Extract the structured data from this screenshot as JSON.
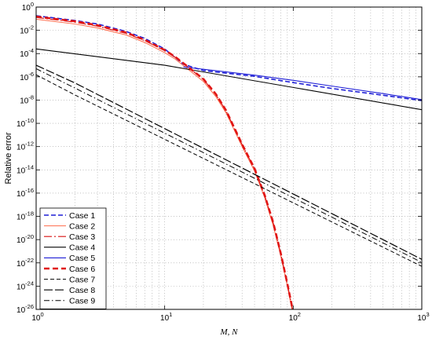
{
  "chart_data": {
    "type": "line",
    "xscale": "log",
    "yscale": "log",
    "xlim": [
      1,
      1000
    ],
    "ylim": [
      1e-26,
      1
    ],
    "xlabel": "M, N",
    "ylabel": "Relative error",
    "grid": true,
    "legend_position": "bottom-left",
    "x_ticks": [
      1,
      10,
      100,
      1000
    ],
    "x_tick_labels": [
      {
        "base": "10",
        "exp": "0"
      },
      {
        "base": "10",
        "exp": "1"
      },
      {
        "base": "10",
        "exp": "2"
      },
      {
        "base": "10",
        "exp": "3"
      }
    ],
    "y_ticks": [
      1,
      0.01,
      0.0001,
      1e-06,
      1e-08,
      1e-10,
      1e-12,
      1e-14,
      1e-16,
      1e-18,
      1e-20,
      1e-22,
      1e-24,
      1e-26
    ],
    "y_tick_labels": [
      {
        "base": "10",
        "exp": "0"
      },
      {
        "base": "10",
        "exp": "-2"
      },
      {
        "base": "10",
        "exp": "-4"
      },
      {
        "base": "10",
        "exp": "-6"
      },
      {
        "base": "10",
        "exp": "-8"
      },
      {
        "base": "10",
        "exp": "-10"
      },
      {
        "base": "10",
        "exp": "-12"
      },
      {
        "base": "10",
        "exp": "-14"
      },
      {
        "base": "10",
        "exp": "-16"
      },
      {
        "base": "10",
        "exp": "-18"
      },
      {
        "base": "10",
        "exp": "-20"
      },
      {
        "base": "10",
        "exp": "-22"
      },
      {
        "base": "10",
        "exp": "-24"
      },
      {
        "base": "10",
        "exp": "-26"
      }
    ],
    "series": [
      {
        "name": "Case 1",
        "color": "#1f1fd6",
        "dash": "6,3",
        "width": 1.6,
        "x": [
          1,
          2,
          3,
          5,
          7,
          10,
          14,
          20,
          50,
          100,
          200,
          500,
          1000
        ],
        "y": [
          0.18,
          0.07,
          0.035,
          0.008,
          0.002,
          0.00025,
          1.2e-05,
          3.5e-06,
          1.1e-06,
          3.2e-07,
          1e-07,
          2.6e-08,
          9e-09
        ]
      },
      {
        "name": "Case 2",
        "color": "#ff6a4a",
        "dash": "",
        "width": 1.0,
        "x": [
          1,
          2,
          3,
          5,
          7,
          10,
          12,
          15,
          20,
          25,
          30,
          40,
          50,
          60,
          70,
          80,
          90,
          100
        ],
        "y": [
          0.09,
          0.035,
          0.016,
          0.004,
          0.0009,
          0.00012,
          3.5e-05,
          5e-06,
          4e-07,
          2e-08,
          8e-10,
          1e-12,
          8e-15,
          4e-17,
          1.5e-19,
          4e-22,
          1e-24,
          3e-27
        ]
      },
      {
        "name": "Case 3",
        "color": "#d81010",
        "dash": "10,3,2,3",
        "width": 1.2,
        "x": [
          1,
          2,
          3,
          5,
          7,
          10,
          12,
          15,
          20,
          25,
          30,
          40,
          50,
          60,
          70,
          80,
          90,
          100
        ],
        "y": [
          0.13,
          0.05,
          0.023,
          0.0055,
          0.0013,
          0.00018,
          5e-05,
          7.5e-06,
          6e-07,
          3e-08,
          1.2e-09,
          1.5e-12,
          1.2e-14,
          6e-17,
          2.5e-19,
          6e-22,
          1.5e-24,
          5e-27
        ]
      },
      {
        "name": "Case 4",
        "color": "#000000",
        "dash": "",
        "width": 1.1,
        "x": [
          1,
          10,
          17,
          1000
        ],
        "y": [
          0.00025,
          1e-05,
          3.6e-06,
          1.5e-09
        ]
      },
      {
        "name": "Case 5",
        "color": "#1f1fd6",
        "dash": "",
        "width": 1.1,
        "x": [
          14,
          17,
          20,
          50,
          100,
          200,
          500,
          1000
        ],
        "y": [
          7e-06,
          5.5e-06,
          4.5e-06,
          1.4e-06,
          5e-07,
          1.6e-07,
          3.6e-08,
          1.1e-08
        ]
      },
      {
        "name": "Case 6",
        "color": "#e01515",
        "dash": "7,4",
        "width": 2.6,
        "x": [
          1,
          2,
          3,
          5,
          7,
          10,
          12,
          15,
          20,
          25,
          30,
          40,
          50,
          60,
          70,
          80,
          90,
          100
        ],
        "y": [
          0.15,
          0.06,
          0.027,
          0.0065,
          0.0015,
          0.0002,
          5.5e-05,
          8e-06,
          6.5e-07,
          3.3e-08,
          1.3e-09,
          1.6e-12,
          1.3e-14,
          6.5e-17,
          2.7e-19,
          6.5e-22,
          1.6e-24,
          5.5e-27
        ]
      },
      {
        "name": "Case 7",
        "color": "#000000",
        "dash": "5,3",
        "width": 1.0,
        "x": [
          1,
          2,
          1000
        ],
        "y": [
          1.5e-06,
          2.8e-08,
          5e-23
        ]
      },
      {
        "name": "Case 8",
        "color": "#000000",
        "dash": "11,3",
        "width": 1.2,
        "x": [
          1,
          2,
          1000
        ],
        "y": [
          1e-05,
          3e-07,
          2e-22
        ]
      },
      {
        "name": "Case 9",
        "color": "#000000",
        "dash": "7,3,1.5,3",
        "width": 1.0,
        "x": [
          1,
          2,
          1000
        ],
        "y": [
          5e-06,
          1.1e-07,
          1.1e-22
        ]
      }
    ]
  }
}
